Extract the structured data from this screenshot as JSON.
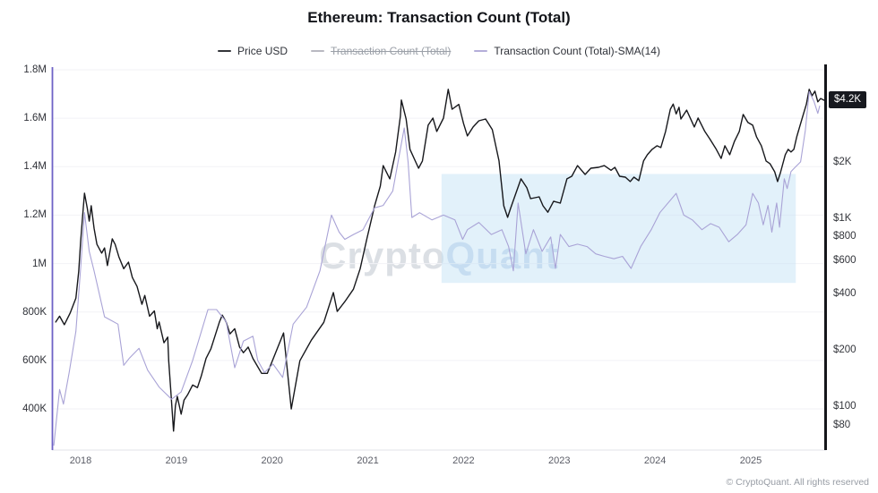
{
  "title": "Ethereum: Transaction Count (Total)",
  "legend": {
    "items": [
      {
        "label": "Price USD",
        "color": "#33353a",
        "disabled": false
      },
      {
        "label": "Transaction Count (Total)",
        "color": "#b9b9c1",
        "disabled": true
      },
      {
        "label": "Transaction Count (Total)-SMA(14)",
        "color": "#b4aed9",
        "disabled": false
      }
    ]
  },
  "watermark": {
    "part1": "Crypto",
    "part2": "Quant"
  },
  "footer": {
    "copyright": "© CryptoQuant. All rights reserved"
  },
  "chart_data": {
    "type": "line",
    "title": "Ethereum: Transaction Count (Total)",
    "grid": "horizontal-faint",
    "legend_position": "top-center",
    "x_axis": {
      "ticks": [
        2018,
        2019,
        2020,
        2021,
        2022,
        2023,
        2024,
        2025
      ],
      "range": [
        2017.7,
        2025.8
      ]
    },
    "left_axis": {
      "title": "Transaction Count (Total)",
      "scale": "linear",
      "units": "transactions (millions)",
      "range_M": [
        0.23,
        1.81
      ],
      "ticks": [
        {
          "v": 1.8,
          "label": "1.8M"
        },
        {
          "v": 1.6,
          "label": "1.6M"
        },
        {
          "v": 1.4,
          "label": "1.4M"
        },
        {
          "v": 1.2,
          "label": "1.2M"
        },
        {
          "v": 1.0,
          "label": "1M"
        },
        {
          "v": 0.8,
          "label": "800K"
        },
        {
          "v": 0.6,
          "label": "600K"
        },
        {
          "v": 0.4,
          "label": "400K"
        }
      ]
    },
    "right_axis": {
      "title": "Price USD",
      "scale": "log",
      "units": "USD",
      "range": [
        59,
        6300
      ],
      "ticks": [
        {
          "v": 2000,
          "label": "$2K"
        },
        {
          "v": 1000,
          "label": "$1K"
        },
        {
          "v": 800,
          "label": "$800"
        },
        {
          "v": 600,
          "label": "$600"
        },
        {
          "v": 400,
          "label": "$400"
        },
        {
          "v": 200,
          "label": "$200"
        },
        {
          "v": 100,
          "label": "$100"
        },
        {
          "v": 80,
          "label": "$80"
        }
      ],
      "last_price_label": "$4.2K",
      "last_price_value": 4230
    },
    "highlight_region": {
      "t_from": 2021.77,
      "t_to": 2025.47,
      "v_from_M": 0.92,
      "v_to_M": 1.37,
      "color": "#bfe0f5"
    },
    "series": [
      {
        "name": "Price USD",
        "axis": "right",
        "color": "#17181c",
        "width": 1.4,
        "points": [
          [
            2017.74,
            281
          ],
          [
            2017.78,
            302
          ],
          [
            2017.83,
            272
          ],
          [
            2017.89,
            313
          ],
          [
            2017.95,
            376
          ],
          [
            2017.98,
            524
          ],
          [
            2018.0,
            752
          ],
          [
            2018.02,
            1011
          ],
          [
            2018.04,
            1360
          ],
          [
            2018.07,
            1127
          ],
          [
            2018.09,
            967
          ],
          [
            2018.11,
            1166
          ],
          [
            2018.14,
            886
          ],
          [
            2018.17,
            727
          ],
          [
            2018.22,
            653
          ],
          [
            2018.25,
            696
          ],
          [
            2018.28,
            561
          ],
          [
            2018.33,
            777
          ],
          [
            2018.36,
            727
          ],
          [
            2018.4,
            624
          ],
          [
            2018.45,
            540
          ],
          [
            2018.5,
            585
          ],
          [
            2018.54,
            485
          ],
          [
            2018.59,
            434
          ],
          [
            2018.64,
            349
          ],
          [
            2018.67,
            389
          ],
          [
            2018.72,
            302
          ],
          [
            2018.77,
            322
          ],
          [
            2018.8,
            259
          ],
          [
            2018.82,
            281
          ],
          [
            2018.87,
            218
          ],
          [
            2018.91,
            234
          ],
          [
            2018.92,
            175
          ],
          [
            2018.94,
            126
          ],
          [
            2018.97,
            74
          ],
          [
            2018.99,
            101
          ],
          [
            2019.01,
            113
          ],
          [
            2019.05,
            91
          ],
          [
            2019.08,
            108
          ],
          [
            2019.12,
            116
          ],
          [
            2019.17,
            130
          ],
          [
            2019.22,
            126
          ],
          [
            2019.26,
            145
          ],
          [
            2019.31,
            180
          ],
          [
            2019.36,
            202
          ],
          [
            2019.4,
            234
          ],
          [
            2019.45,
            281
          ],
          [
            2019.48,
            306
          ],
          [
            2019.52,
            281
          ],
          [
            2019.56,
            243
          ],
          [
            2019.61,
            259
          ],
          [
            2019.66,
            207
          ],
          [
            2019.7,
            193
          ],
          [
            2019.75,
            207
          ],
          [
            2019.8,
            180
          ],
          [
            2019.84,
            166
          ],
          [
            2019.89,
            150
          ],
          [
            2019.95,
            150
          ],
          [
            2020.12,
            246
          ],
          [
            2020.2,
            97
          ],
          [
            2020.29,
            175
          ],
          [
            2020.41,
            225
          ],
          [
            2020.54,
            280
          ],
          [
            2020.64,
            403
          ],
          [
            2020.68,
            320
          ],
          [
            2020.76,
            361
          ],
          [
            2020.85,
            420
          ],
          [
            2020.92,
            540
          ],
          [
            2020.99,
            778
          ],
          [
            2021.07,
            1165
          ],
          [
            2021.13,
            1483
          ],
          [
            2021.16,
            1906
          ],
          [
            2021.23,
            1620
          ],
          [
            2021.29,
            2248
          ],
          [
            2021.34,
            3490
          ],
          [
            2021.35,
            4250
          ],
          [
            2021.4,
            3373
          ],
          [
            2021.44,
            2326
          ],
          [
            2021.53,
            1846
          ],
          [
            2021.57,
            2018
          ],
          [
            2021.63,
            3125
          ],
          [
            2021.68,
            3410
          ],
          [
            2021.72,
            2896
          ],
          [
            2021.79,
            3410
          ],
          [
            2021.84,
            4850
          ],
          [
            2021.88,
            3800
          ],
          [
            2021.95,
            4030
          ],
          [
            2022.0,
            3190
          ],
          [
            2022.04,
            2740
          ],
          [
            2022.1,
            3060
          ],
          [
            2022.16,
            3300
          ],
          [
            2022.23,
            3373
          ],
          [
            2022.3,
            2960
          ],
          [
            2022.37,
            2018
          ],
          [
            2022.42,
            1166
          ],
          [
            2022.46,
            1012
          ],
          [
            2022.49,
            1127
          ],
          [
            2022.6,
            1620
          ],
          [
            2022.66,
            1455
          ],
          [
            2022.7,
            1272
          ],
          [
            2022.79,
            1300
          ],
          [
            2022.83,
            1166
          ],
          [
            2022.88,
            1077
          ],
          [
            2022.94,
            1232
          ],
          [
            2023.01,
            1205
          ],
          [
            2023.08,
            1620
          ],
          [
            2023.13,
            1673
          ],
          [
            2023.19,
            1906
          ],
          [
            2023.27,
            1710
          ],
          [
            2023.33,
            1846
          ],
          [
            2023.41,
            1866
          ],
          [
            2023.47,
            1906
          ],
          [
            2023.54,
            1800
          ],
          [
            2023.58,
            1866
          ],
          [
            2023.63,
            1673
          ],
          [
            2023.69,
            1655
          ],
          [
            2023.74,
            1568
          ],
          [
            2023.78,
            1655
          ],
          [
            2023.83,
            1585
          ],
          [
            2023.88,
            2018
          ],
          [
            2023.92,
            2178
          ],
          [
            2023.97,
            2326
          ],
          [
            2024.02,
            2430
          ],
          [
            2024.06,
            2377
          ],
          [
            2024.11,
            2896
          ],
          [
            2024.16,
            3800
          ],
          [
            2024.19,
            4050
          ],
          [
            2024.22,
            3590
          ],
          [
            2024.25,
            3890
          ],
          [
            2024.27,
            3373
          ],
          [
            2024.33,
            3757
          ],
          [
            2024.41,
            3060
          ],
          [
            2024.45,
            3414
          ],
          [
            2024.52,
            2896
          ],
          [
            2024.57,
            2649
          ],
          [
            2024.64,
            2326
          ],
          [
            2024.69,
            2080
          ],
          [
            2024.73,
            2430
          ],
          [
            2024.78,
            2178
          ],
          [
            2024.83,
            2566
          ],
          [
            2024.88,
            2896
          ],
          [
            2024.92,
            3566
          ],
          [
            2024.97,
            3230
          ],
          [
            2025.02,
            3125
          ],
          [
            2025.06,
            2710
          ],
          [
            2025.11,
            2430
          ],
          [
            2025.16,
            2018
          ],
          [
            2025.2,
            1953
          ],
          [
            2025.25,
            1767
          ],
          [
            2025.28,
            1568
          ],
          [
            2025.31,
            1747
          ],
          [
            2025.36,
            2178
          ],
          [
            2025.39,
            2326
          ],
          [
            2025.42,
            2250
          ],
          [
            2025.45,
            2326
          ],
          [
            2025.48,
            2710
          ],
          [
            2025.51,
            3060
          ],
          [
            2025.55,
            3590
          ],
          [
            2025.58,
            4030
          ],
          [
            2025.61,
            4850
          ],
          [
            2025.64,
            4480
          ],
          [
            2025.67,
            4740
          ],
          [
            2025.7,
            4160
          ],
          [
            2025.73,
            4330
          ],
          [
            2025.77,
            4230
          ]
        ]
      },
      {
        "name": "Transaction Count (Total)-SMA(14)",
        "axis": "left",
        "color": "#a9a3d6",
        "width": 1.1,
        "units": "millions",
        "points": [
          [
            2017.72,
            0.25
          ],
          [
            2017.78,
            0.48
          ],
          [
            2017.82,
            0.42
          ],
          [
            2017.88,
            0.55
          ],
          [
            2017.95,
            0.72
          ],
          [
            2018.0,
            0.98
          ],
          [
            2018.04,
            1.21
          ],
          [
            2018.09,
            1.05
          ],
          [
            2018.14,
            0.97
          ],
          [
            2018.25,
            0.78
          ],
          [
            2018.39,
            0.75
          ],
          [
            2018.45,
            0.58
          ],
          [
            2018.51,
            0.61
          ],
          [
            2018.61,
            0.65
          ],
          [
            2018.7,
            0.56
          ],
          [
            2018.82,
            0.49
          ],
          [
            2018.95,
            0.44
          ],
          [
            2019.05,
            0.47
          ],
          [
            2019.17,
            0.6
          ],
          [
            2019.33,
            0.81
          ],
          [
            2019.42,
            0.81
          ],
          [
            2019.52,
            0.76
          ],
          [
            2019.61,
            0.57
          ],
          [
            2019.7,
            0.68
          ],
          [
            2019.8,
            0.7
          ],
          [
            2019.85,
            0.6
          ],
          [
            2019.92,
            0.55
          ],
          [
            2020.01,
            0.585
          ],
          [
            2020.11,
            0.53
          ],
          [
            2020.22,
            0.75
          ],
          [
            2020.36,
            0.82
          ],
          [
            2020.5,
            0.97
          ],
          [
            2020.62,
            1.2
          ],
          [
            2020.7,
            1.13
          ],
          [
            2020.76,
            1.1
          ],
          [
            2020.85,
            1.12
          ],
          [
            2020.95,
            1.14
          ],
          [
            2021.07,
            1.23
          ],
          [
            2021.16,
            1.24
          ],
          [
            2021.26,
            1.3
          ],
          [
            2021.38,
            1.56
          ],
          [
            2021.42,
            1.42
          ],
          [
            2021.46,
            1.19
          ],
          [
            2021.54,
            1.21
          ],
          [
            2021.67,
            1.18
          ],
          [
            2021.79,
            1.2
          ],
          [
            2021.91,
            1.18
          ],
          [
            2021.99,
            1.1
          ],
          [
            2022.04,
            1.14
          ],
          [
            2022.16,
            1.17
          ],
          [
            2022.29,
            1.12
          ],
          [
            2022.4,
            1.14
          ],
          [
            2022.47,
            1.07
          ],
          [
            2022.52,
            0.97
          ],
          [
            2022.57,
            1.25
          ],
          [
            2022.65,
            1.04
          ],
          [
            2022.73,
            1.14
          ],
          [
            2022.82,
            1.05
          ],
          [
            2022.91,
            1.11
          ],
          [
            2022.96,
            0.98
          ],
          [
            2023.01,
            1.12
          ],
          [
            2023.1,
            1.07
          ],
          [
            2023.19,
            1.08
          ],
          [
            2023.29,
            1.07
          ],
          [
            2023.38,
            1.04
          ],
          [
            2023.47,
            1.03
          ],
          [
            2023.57,
            1.02
          ],
          [
            2023.66,
            1.03
          ],
          [
            2023.75,
            0.98
          ],
          [
            2023.85,
            1.07
          ],
          [
            2023.96,
            1.14
          ],
          [
            2024.05,
            1.21
          ],
          [
            2024.22,
            1.29
          ],
          [
            2024.3,
            1.2
          ],
          [
            2024.39,
            1.18
          ],
          [
            2024.49,
            1.14
          ],
          [
            2024.58,
            1.165
          ],
          [
            2024.67,
            1.15
          ],
          [
            2024.77,
            1.09
          ],
          [
            2024.86,
            1.12
          ],
          [
            2024.95,
            1.16
          ],
          [
            2025.02,
            1.29
          ],
          [
            2025.08,
            1.25
          ],
          [
            2025.13,
            1.16
          ],
          [
            2025.18,
            1.24
          ],
          [
            2025.22,
            1.13
          ],
          [
            2025.27,
            1.25
          ],
          [
            2025.3,
            1.15
          ],
          [
            2025.35,
            1.35
          ],
          [
            2025.38,
            1.31
          ],
          [
            2025.42,
            1.38
          ],
          [
            2025.47,
            1.4
          ],
          [
            2025.52,
            1.42
          ],
          [
            2025.57,
            1.55
          ],
          [
            2025.61,
            1.71
          ],
          [
            2025.66,
            1.67
          ],
          [
            2025.7,
            1.62
          ],
          [
            2025.72,
            1.65
          ]
        ]
      }
    ]
  }
}
